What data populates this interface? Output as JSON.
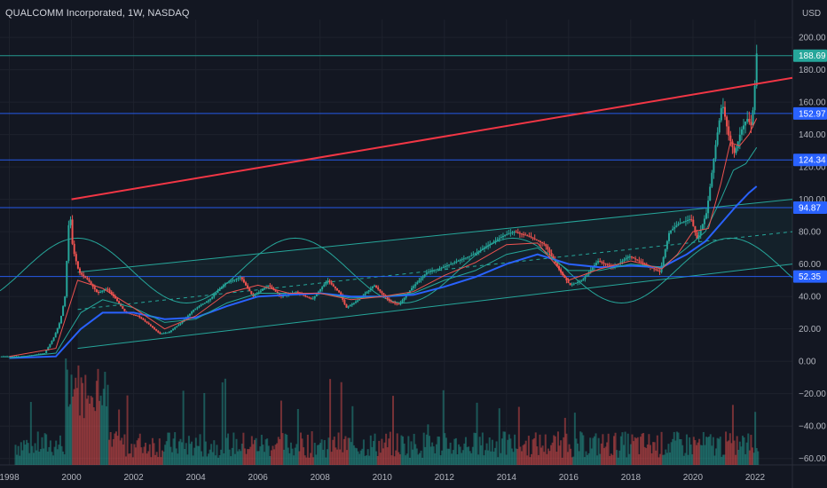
{
  "header": {
    "title": "QUALCOMM Incorporated, 1W, NASDAQ",
    "currency": "USD"
  },
  "chart_data": {
    "type": "line",
    "x_ticks": [
      "1998",
      "2000",
      "2002",
      "2004",
      "2006",
      "2008",
      "2010",
      "2012",
      "2014",
      "2016",
      "2018",
      "2020",
      "2022"
    ],
    "x_tick_values": [
      1998,
      2000,
      2002,
      2004,
      2006,
      2008,
      2010,
      2012,
      2014,
      2016,
      2018,
      2020,
      2022
    ],
    "y_ticks": [
      "200.00",
      "180.00",
      "160.00",
      "140.00",
      "120.00",
      "100.00",
      "80.00",
      "60.00",
      "40.00",
      "20.00",
      "0.00",
      "−20.00",
      "−40.00",
      "−60.00"
    ],
    "y_tick_values": [
      200,
      180,
      160,
      140,
      120,
      100,
      80,
      60,
      40,
      20,
      0,
      -20,
      -40,
      -60
    ],
    "xlim": [
      1997.7,
      2023.2
    ],
    "ylim": [
      -64,
      211
    ],
    "price": {
      "x": [
        1997.7,
        1998.5,
        1999.2,
        1999.5,
        1999.7,
        1999.85,
        2000.0,
        2000.1,
        2000.3,
        2000.6,
        2000.9,
        2001.2,
        2001.5,
        2001.8,
        2002.2,
        2002.6,
        2002.9,
        2003.2,
        2003.6,
        2004.0,
        2004.5,
        2005.0,
        2005.5,
        2005.9,
        2006.4,
        2006.8,
        2007.3,
        2007.8,
        2008.3,
        2008.7,
        2008.9,
        2009.3,
        2009.8,
        2010.3,
        2010.6,
        2011.0,
        2011.5,
        2012.0,
        2012.5,
        2013.0,
        2013.5,
        2014.0,
        2014.3,
        2014.8,
        2015.3,
        2015.8,
        2016.1,
        2016.5,
        2017.0,
        2017.5,
        2018.0,
        2018.5,
        2019.0,
        2019.3,
        2019.6,
        2020.0,
        2020.2,
        2020.5,
        2020.8,
        2021.0,
        2021.2,
        2021.4,
        2021.6,
        2021.8,
        2021.95,
        2022.05,
        2022.1
      ],
      "y": [
        3,
        3,
        5,
        15,
        25,
        40,
        95,
        70,
        55,
        50,
        42,
        45,
        38,
        30,
        28,
        22,
        17,
        18,
        24,
        32,
        38,
        48,
        52,
        40,
        47,
        40,
        43,
        38,
        50,
        42,
        33,
        38,
        47,
        37,
        35,
        45,
        55,
        58,
        62,
        66,
        72,
        78,
        80,
        77,
        72,
        55,
        47,
        50,
        62,
        58,
        65,
        60,
        55,
        80,
        85,
        88,
        75,
        92,
        135,
        160,
        140,
        128,
        142,
        150,
        145,
        170,
        190
      ]
    },
    "ma_fast": {
      "x": [
        1998.0,
        1999.5,
        2000.2,
        2001.0,
        2002.0,
        2003.0,
        2004.0,
        2005.0,
        2006.0,
        2007.0,
        2008.0,
        2009.0,
        2010.0,
        2011.0,
        2012.0,
        2013.0,
        2014.0,
        2015.0,
        2016.0,
        2017.0,
        2018.0,
        2019.0,
        2019.5,
        2020.0,
        2020.5,
        2020.9,
        2021.2,
        2021.5,
        2021.8,
        2022.05
      ],
      "y": [
        3,
        8,
        50,
        45,
        33,
        20,
        28,
        42,
        47,
        42,
        42,
        38,
        40,
        43,
        53,
        61,
        72,
        73,
        50,
        57,
        62,
        57,
        66,
        80,
        82,
        110,
        135,
        133,
        140,
        150
      ]
    },
    "ma_slow": {
      "x": [
        1998.0,
        1999.5,
        2000.3,
        2001.0,
        2002.0,
        2003.0,
        2004.0,
        2005.0,
        2006.0,
        2007.0,
        2008.0,
        2009.0,
        2010.0,
        2011.0,
        2012.0,
        2013.0,
        2014.0,
        2015.0,
        2016.0,
        2017.0,
        2018.0,
        2019.0,
        2019.8,
        2020.4,
        2020.9,
        2021.3,
        2021.7,
        2022.05
      ],
      "y": [
        2,
        5,
        30,
        38,
        33,
        24,
        26,
        36,
        42,
        42,
        42,
        39,
        40,
        42,
        50,
        56,
        66,
        70,
        56,
        56,
        60,
        58,
        70,
        80,
        100,
        118,
        122,
        132
      ]
    },
    "ma_long": {
      "x": [
        1998.0,
        1999.5,
        2000.3,
        2001.0,
        2002.0,
        2003.0,
        2004.0,
        2005.0,
        2006.0,
        2007.0,
        2008.0,
        2009.0,
        2010.0,
        2011.0,
        2012.0,
        2013.0,
        2014.0,
        2015.0,
        2016.0,
        2017.0,
        2018.0,
        2019.0,
        2019.8,
        2020.4,
        2020.9,
        2021.4,
        2021.8,
        2022.05
      ],
      "y": [
        2,
        3,
        20,
        30,
        30,
        26,
        27,
        34,
        40,
        41,
        42,
        40,
        40,
        41,
        46,
        52,
        60,
        66,
        60,
        58,
        59,
        58,
        66,
        74,
        85,
        96,
        104,
        108
      ]
    },
    "horizontal_levels": [
      {
        "value": 188.69,
        "label": "188.69",
        "color": "#26a69a"
      },
      {
        "value": 152.97,
        "label": "152.97",
        "color": "#2962ff"
      },
      {
        "value": 124.34,
        "label": "124.34",
        "color": "#2962ff"
      },
      {
        "value": 94.87,
        "label": "94.87",
        "color": "#2962ff"
      },
      {
        "value": 52.35,
        "label": "52.35",
        "color": "#2962ff"
      }
    ],
    "trendline": {
      "color": "#f23645",
      "from": [
        2000.0,
        100
      ],
      "to": [
        2023.2,
        175
      ]
    },
    "channel": {
      "color": "#26a69a",
      "upper": {
        "from": [
          2000.2,
          55
        ],
        "to": [
          2023.2,
          100
        ]
      },
      "lower": {
        "from": [
          2000.2,
          8
        ],
        "to": [
          2023.2,
          60
        ]
      },
      "mid": {
        "from": [
          2000.2,
          32
        ],
        "to": [
          2023.2,
          80
        ]
      }
    },
    "cycle_wave": {
      "color": "#26a69a",
      "center": 56,
      "amplitude": 20,
      "period": 7,
      "peak_x": 2000.2
    },
    "volume": {
      "scale_max": 100
    },
    "colors": {
      "background": "#131722",
      "grid": "#1e222d",
      "up": "#26a69a",
      "down": "#ef5350",
      "ma_fast": "#ef5350",
      "ma_slow": "#26a69a",
      "ma_long": "#2962ff"
    }
  }
}
